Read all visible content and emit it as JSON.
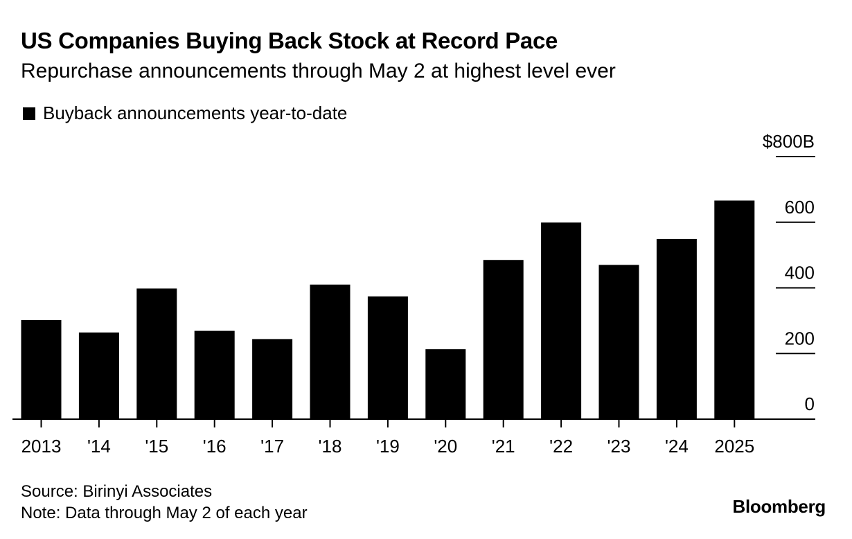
{
  "chart_data": {
    "type": "bar",
    "title": "US Companies Buying Back Stock at Record Pace",
    "subtitle": "Repurchase announcements through May 2 at highest level ever",
    "categories": [
      "2013",
      "'14",
      "'15",
      "'16",
      "'17",
      "'18",
      "'19",
      "'20",
      "'21",
      "'22",
      "'23",
      "'24",
      "2025"
    ],
    "series": [
      {
        "name": "Buyback announcements year-to-date",
        "values": [
          302,
          264,
          398,
          269,
          244,
          410,
          374,
          213,
          485,
          599,
          470,
          549,
          666
        ],
        "color": "#000000"
      }
    ],
    "ylim": [
      0,
      800
    ],
    "yticks": [
      0,
      200,
      400,
      600,
      800
    ],
    "ytick_labels": [
      "0",
      "200",
      "400",
      "600",
      "$800B"
    ],
    "y_axis_side": "right",
    "grid": false,
    "legend_position": "top-left"
  },
  "footer": {
    "source": "Source: Birinyi Associates",
    "note": "Note: Data through May 2 of each year",
    "brand": "Bloomberg"
  }
}
